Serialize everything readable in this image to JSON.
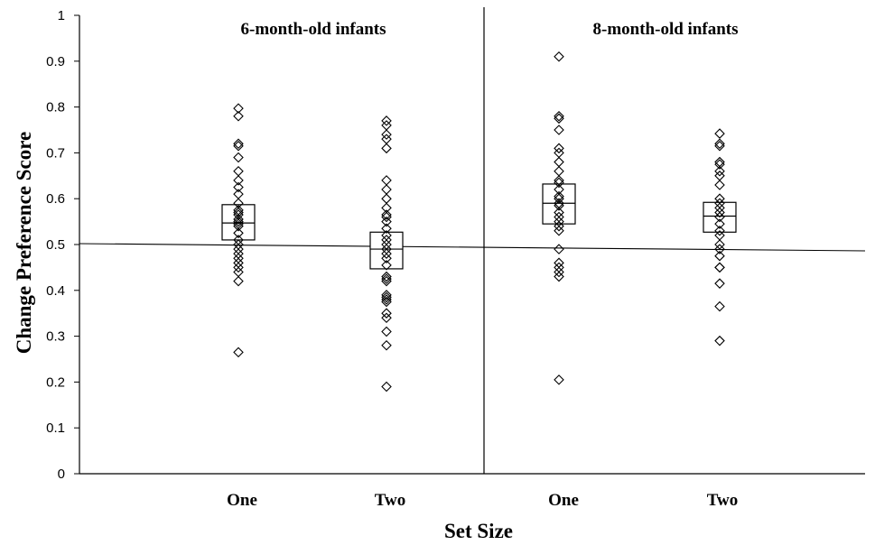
{
  "chart_data": {
    "type": "scatter",
    "ylabel": "Change Preference Score",
    "xlabel": "Set Size",
    "ylim": [
      0,
      1
    ],
    "yticks": [
      "0",
      "0.1",
      "0.2",
      "0.3",
      "0.4",
      "0.5",
      "0.6",
      "0.7",
      "0.8",
      "0.9",
      "1"
    ],
    "reference_line": 0.5,
    "panels": [
      {
        "title": "6-month-old infants",
        "groups": [
          {
            "label": "One",
            "box": {
              "low": 0.51,
              "median": 0.547,
              "high": 0.587
            },
            "values": [
              0.797,
              0.78,
              0.72,
              0.715,
              0.69,
              0.66,
              0.64,
              0.625,
              0.61,
              0.59,
              0.575,
              0.57,
              0.565,
              0.555,
              0.55,
              0.545,
              0.54,
              0.525,
              0.51,
              0.5,
              0.49,
              0.48,
              0.47,
              0.46,
              0.45,
              0.44,
              0.42,
              0.265
            ]
          },
          {
            "label": "Two",
            "box": {
              "low": 0.447,
              "median": 0.49,
              "high": 0.527
            },
            "values": [
              0.77,
              0.76,
              0.74,
              0.73,
              0.71,
              0.64,
              0.62,
              0.6,
              0.58,
              0.565,
              0.56,
              0.55,
              0.535,
              0.52,
              0.51,
              0.5,
              0.49,
              0.48,
              0.47,
              0.455,
              0.43,
              0.425,
              0.42,
              0.39,
              0.385,
              0.38,
              0.375,
              0.35,
              0.34,
              0.31,
              0.28,
              0.19
            ]
          }
        ]
      },
      {
        "title": "8-month-old infants",
        "groups": [
          {
            "label": "One",
            "box": {
              "low": 0.545,
              "median": 0.59,
              "high": 0.632
            },
            "values": [
              0.91,
              0.78,
              0.775,
              0.75,
              0.71,
              0.7,
              0.68,
              0.66,
              0.64,
              0.635,
              0.62,
              0.605,
              0.6,
              0.59,
              0.585,
              0.57,
              0.56,
              0.55,
              0.54,
              0.53,
              0.49,
              0.46,
              0.45,
              0.44,
              0.43,
              0.205
            ]
          },
          {
            "label": "Two",
            "box": {
              "low": 0.527,
              "median": 0.562,
              "high": 0.592
            },
            "values": [
              0.742,
              0.72,
              0.715,
              0.68,
              0.675,
              0.66,
              0.65,
              0.63,
              0.6,
              0.59,
              0.58,
              0.57,
              0.56,
              0.545,
              0.53,
              0.52,
              0.5,
              0.49,
              0.475,
              0.45,
              0.45,
              0.415,
              0.365,
              0.29
            ]
          }
        ]
      }
    ]
  }
}
